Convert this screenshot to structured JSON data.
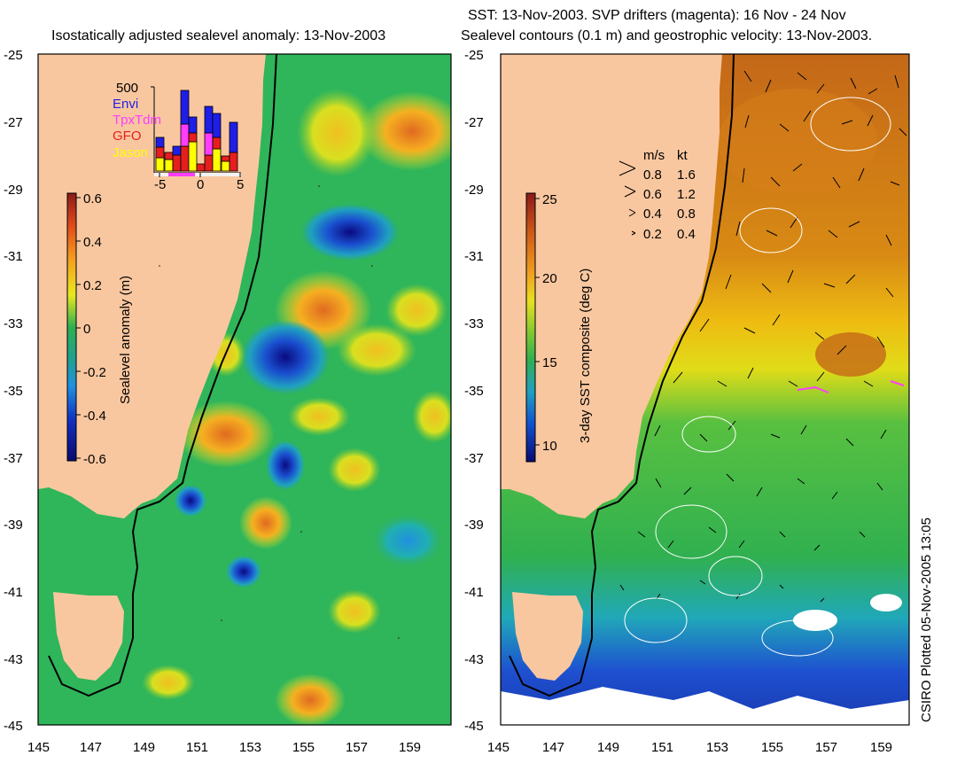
{
  "left_panel": {
    "title": "Isostatically adjusted sealevel anomaly: 13-Nov-2003",
    "colorbar": {
      "label": "Sealevel anomaly (m)",
      "ticks": [
        "0.6",
        "0.4",
        "0.2",
        "0",
        "-0.2",
        "-0.4",
        "-0.6"
      ]
    },
    "inset": {
      "top_label": "500",
      "legend": [
        {
          "name": "Envi",
          "color": "#1e1ee6"
        },
        {
          "name": "TpxTdm",
          "color": "#ff3cff"
        },
        {
          "name": "GFO",
          "color": "#e61e1e"
        },
        {
          "name": "Jason",
          "color": "#ffff00"
        }
      ],
      "x_ticks": [
        "-5",
        "0",
        "5"
      ]
    }
  },
  "right_panel": {
    "title_line1": "SST: 13-Nov-2003. SVP drifters (magenta): 16 Nov - 24 Nov",
    "title_line2": "Sealevel contours (0.1 m) and geostrophic velocity: 13-Nov-2003.",
    "colorbar": {
      "label": "3-day SST composite (deg C)",
      "ticks": [
        "25",
        "20",
        "15",
        "10"
      ]
    },
    "speed_key": {
      "header_ms": "m/s",
      "header_kt": "kt",
      "rows": [
        {
          "ms": "0.8",
          "kt": "1.6"
        },
        {
          "ms": "0.6",
          "kt": "1.2"
        },
        {
          "ms": "0.4",
          "kt": "0.8"
        },
        {
          "ms": "0.2",
          "kt": "0.4"
        }
      ]
    }
  },
  "axes": {
    "lat_ticks": [
      "-25",
      "-27",
      "-29",
      "-31",
      "-33",
      "-35",
      "-37",
      "-39",
      "-41",
      "-43",
      "-45"
    ],
    "lon_ticks": [
      "145",
      "147",
      "149",
      "151",
      "153",
      "155",
      "157",
      "159"
    ]
  },
  "credit": "CSIRO Plotted 05-Nov-2005 13:05",
  "colors": {
    "land": "#f9c79f",
    "ocean_ssh": "#2fb55a",
    "sst_warm": "#c86a14",
    "sst_mid": "#f0d010",
    "sst_cool": "#30b050",
    "sst_cold": "#2050d0"
  }
}
